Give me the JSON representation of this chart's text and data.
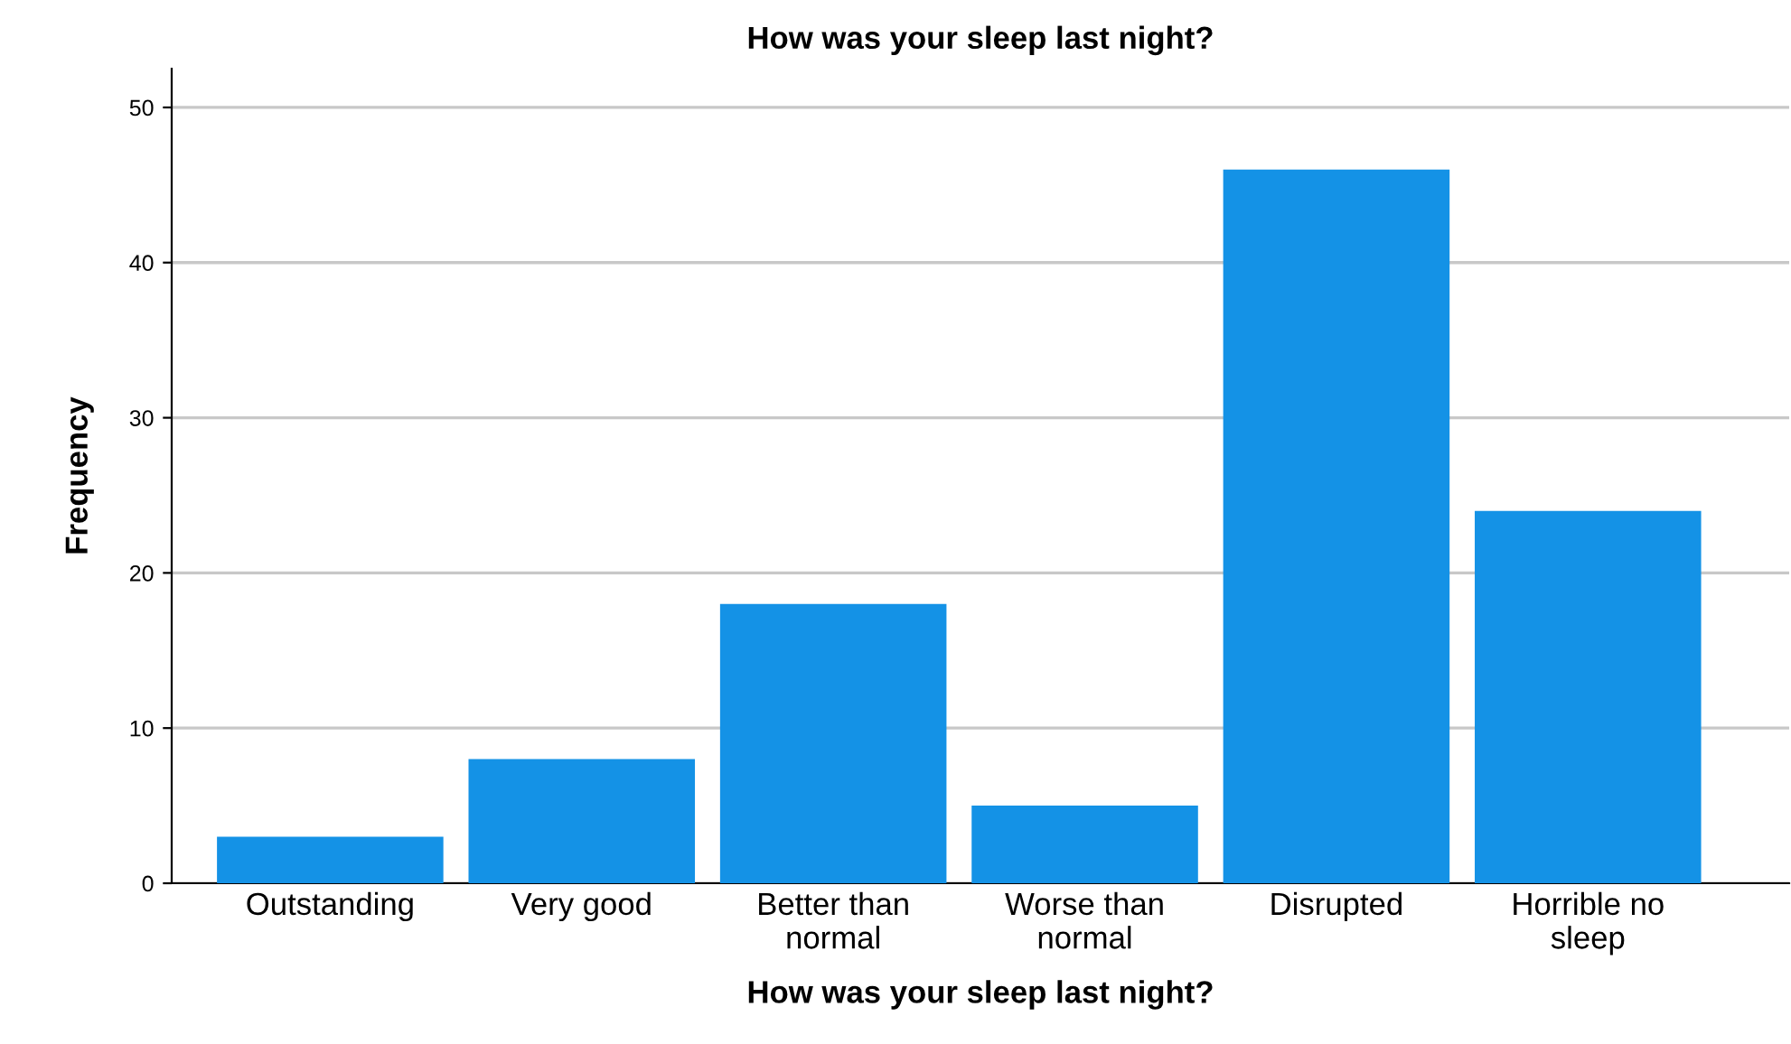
{
  "chart_data": {
    "type": "bar",
    "title": "How was your sleep last night?",
    "xlabel": "How was your sleep last night?",
    "ylabel": "Frequency",
    "categories": [
      "Outstanding",
      "Very good",
      "Better than normal",
      "Worse than normal",
      "Disrupted",
      "Horrible no sleep"
    ],
    "values": [
      3,
      8,
      18,
      5,
      46,
      24
    ],
    "color": "#1492e6",
    "ylim": [
      0,
      52.5
    ],
    "yticks": [
      0,
      10,
      20,
      30,
      40,
      50
    ],
    "grid": "y",
    "legend": false
  }
}
